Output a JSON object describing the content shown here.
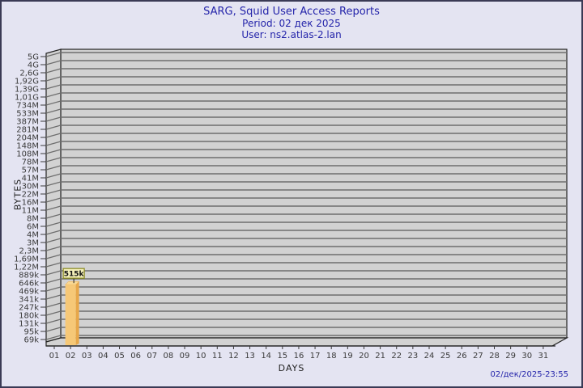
{
  "window": {
    "title_line1": "SARG, Squid User Access Reports",
    "title_line2": "Period: 02 дек 2025",
    "title_line3": "User: ns2.atlas-2.lan",
    "footer_timestamp": "02/дек/2025-23:55"
  },
  "chart_data": {
    "type": "bar",
    "title": "SARG, Squid User Access Reports",
    "subtitle_period": "Period: 02 дек 2025",
    "subtitle_user": "User: ns2.atlas-2.lan",
    "xlabel": "DAYS",
    "ylabel": "BYTES",
    "x_categories": [
      "01",
      "02",
      "03",
      "04",
      "05",
      "06",
      "07",
      "08",
      "09",
      "10",
      "11",
      "12",
      "13",
      "14",
      "15",
      "16",
      "17",
      "18",
      "19",
      "20",
      "21",
      "22",
      "23",
      "24",
      "25",
      "26",
      "27",
      "28",
      "29",
      "30",
      "31"
    ],
    "y_tick_labels_top_to_bottom": [
      "5G",
      "4G",
      "2,6G",
      "1,92G",
      "1,39G",
      "1,01G",
      "734M",
      "533M",
      "387M",
      "281M",
      "204M",
      "148M",
      "108M",
      "78M",
      "57M",
      "41M",
      "30M",
      "22M",
      "16M",
      "11M",
      "8M",
      "6M",
      "4M",
      "3M",
      "2,3M",
      "1,69M",
      "1,22M",
      "889k",
      "646k",
      "469k",
      "341k",
      "247k",
      "180k",
      "131k",
      "95k",
      "69k"
    ],
    "y_scale": {
      "type": "log",
      "bottom_tick_value": 69000,
      "tick_ratio": 1.377
    },
    "series": [
      {
        "name": "bytes",
        "values": [
          0,
          515000,
          0,
          0,
          0,
          0,
          0,
          0,
          0,
          0,
          0,
          0,
          0,
          0,
          0,
          0,
          0,
          0,
          0,
          0,
          0,
          0,
          0,
          0,
          0,
          0,
          0,
          0,
          0,
          0,
          0
        ]
      }
    ],
    "data_labels": [
      {
        "day": "02",
        "label": "515k",
        "value": 515000
      }
    ],
    "legend": "none",
    "grid": "horizontal",
    "timestamp": "02/дек/2025-23:55"
  },
  "colors": {
    "background": "#E4E4F2",
    "border": "#3A3A55",
    "plot_fill": "#D2D2D2",
    "grid_line": "#6E6E6E",
    "frame_line": "#222222",
    "title_text": "#2424AA",
    "timestamp_text": "#2424AA",
    "tick_text": "#3A3A3A",
    "bar_front": "#F6C877",
    "bar_side": "#E7A74A",
    "bar_top": "#F9D892",
    "value_box_fill": "#F3EFB9",
    "value_box_border": "#8A8A1F",
    "value_text": "#111111"
  }
}
